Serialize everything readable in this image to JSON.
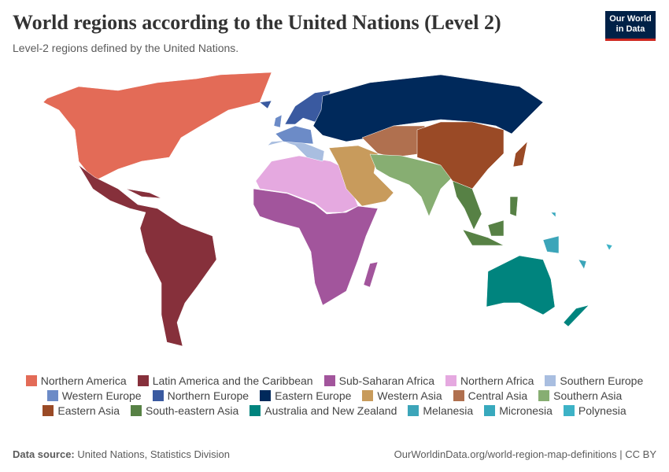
{
  "header": {
    "title": "World regions according to the United Nations (Level 2)",
    "subtitle": "Level-2 regions defined by the United Nations.",
    "logo": [
      "Our World",
      "in Data"
    ]
  },
  "legend": [
    {
      "name": "Northern America",
      "color": "#e36b57"
    },
    {
      "name": "Latin America and the Caribbean",
      "color": "#86303b"
    },
    {
      "name": "Sub-Saharan Africa",
      "color": "#a2559c"
    },
    {
      "name": "Northern Africa",
      "color": "#e5a9e0"
    },
    {
      "name": "Southern Europe",
      "color": "#a9bee0"
    },
    {
      "name": "Western Europe",
      "color": "#6c8bc7"
    },
    {
      "name": "Northern Europe",
      "color": "#3a5aa0"
    },
    {
      "name": "Eastern Europe",
      "color": "#00295b"
    },
    {
      "name": "Western Asia",
      "color": "#c89b5c"
    },
    {
      "name": "Central Asia",
      "color": "#b0704f"
    },
    {
      "name": "Southern Asia",
      "color": "#87ae72"
    },
    {
      "name": "Eastern Asia",
      "color": "#9a4a26"
    },
    {
      "name": "South-eastern Asia",
      "color": "#578145"
    },
    {
      "name": "Australia and New Zealand",
      "color": "#00847e"
    },
    {
      "name": "Melanesia",
      "color": "#3ca5b9"
    },
    {
      "name": "Micronesia",
      "color": "#38a9bd"
    },
    {
      "name": "Polynesia",
      "color": "#3db2c6"
    }
  ],
  "footer": {
    "source_label": "Data source:",
    "source": "United Nations, Statistics Division",
    "url": "OurWorldinData.org/world-region-map-definitions | CC BY"
  }
}
